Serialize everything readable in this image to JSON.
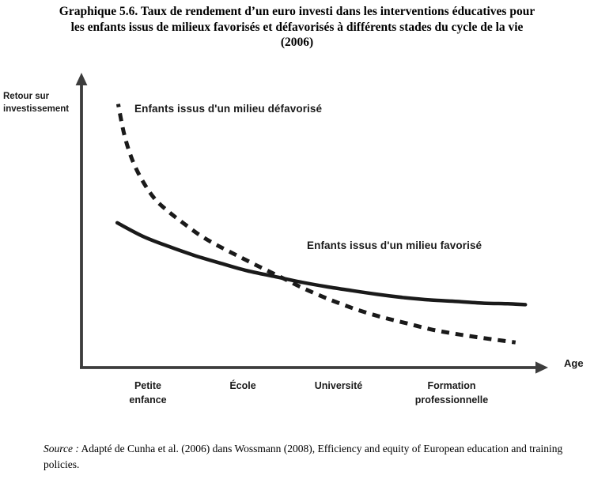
{
  "title": {
    "lines": [
      "Graphique 5.6. Taux de rendement d’un euro investi dans les interventions éducatives pour",
      "les enfants issus de milieux favorisés et défavorisés à différents stades du cycle de la vie",
      "(2006)"
    ]
  },
  "source": {
    "label": "Source :",
    "text": "Adapté de Cunha et al. (2006) dans Wossmann (2008), Efficiency and equity of European education and training policies."
  },
  "chart_data": {
    "type": "line",
    "title": "Taux de rendement d’un euro investi dans les interventions éducatives pour les enfants issus de milieux favorisés et défavorisés à différents stades du cycle de la vie (2006)",
    "xlabel": "Age",
    "ylabel": "Retour sur investissement",
    "x_categories": [
      "Petite enfance",
      "École",
      "Université",
      "Formation professionnelle"
    ],
    "axes_numeric": false,
    "grid": false,
    "legend_position": "labels-next-to-curves",
    "units": "percent of axis length (x: 0 = origin, 100 = arrow tip; y: 0 = x-axis, 100 = top of y-axis)",
    "colors": {
      "curve": "#1a1a1a",
      "axis": "#3d3d3d",
      "text": "#111111"
    },
    "series": [
      {
        "name": "Enfants issus d'un milieu défavorisé",
        "style": "dashed",
        "points": [
          [
            7.9,
            90.1
          ],
          [
            9.2,
            79.8
          ],
          [
            10.9,
            71.2
          ],
          [
            13.2,
            63.7
          ],
          [
            15.9,
            57.5
          ],
          [
            19.0,
            53.0
          ],
          [
            22.1,
            49.2
          ],
          [
            25.1,
            45.7
          ],
          [
            28.2,
            42.7
          ],
          [
            31.3,
            40.1
          ],
          [
            34.4,
            37.6
          ],
          [
            37.4,
            35.2
          ],
          [
            40.5,
            32.8
          ],
          [
            43.6,
            30.4
          ],
          [
            47.0,
            27.7
          ],
          [
            50.8,
            25.0
          ],
          [
            55.0,
            22.3
          ],
          [
            59.7,
            19.6
          ],
          [
            64.8,
            17.2
          ],
          [
            70.1,
            15.1
          ],
          [
            75.7,
            12.9
          ],
          [
            81.4,
            11.3
          ],
          [
            87.4,
            9.9
          ],
          [
            93.5,
            8.6
          ]
        ]
      },
      {
        "name": "Enfants issus d'un milieu favorisé",
        "style": "solid",
        "points": [
          [
            7.7,
            49.5
          ],
          [
            13.2,
            44.9
          ],
          [
            18.8,
            41.4
          ],
          [
            24.6,
            38.2
          ],
          [
            30.3,
            35.5
          ],
          [
            35.7,
            33.1
          ],
          [
            41.4,
            31.2
          ],
          [
            47.0,
            29.3
          ],
          [
            52.6,
            27.7
          ],
          [
            58.3,
            26.3
          ],
          [
            63.9,
            25.0
          ],
          [
            69.6,
            23.9
          ],
          [
            75.2,
            23.1
          ],
          [
            80.9,
            22.6
          ],
          [
            86.7,
            22.0
          ],
          [
            91.8,
            21.8
          ],
          [
            95.6,
            21.5
          ]
        ]
      }
    ]
  }
}
